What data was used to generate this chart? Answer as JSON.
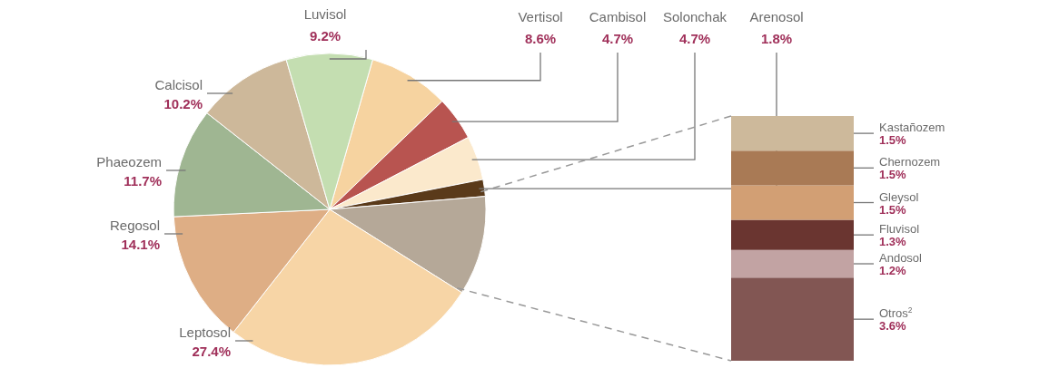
{
  "chart_data": [
    {
      "type": "pie",
      "categories": [
        "Vertisol",
        "Cambisol",
        "Solonchak",
        "Arenosol",
        null,
        "Leptosol",
        "Regosol",
        "Phaeozem",
        "Calcisol",
        "Luvisol"
      ],
      "values": [
        8.6,
        4.7,
        4.7,
        1.8,
        10.6,
        27.4,
        14.1,
        11.7,
        10.2,
        9.2
      ],
      "colors": [
        "#f6d3a0",
        "#b85450",
        "#fbe9cc",
        "#5a3a1a",
        "#b5a898",
        "#f7d5a6",
        "#deae85",
        "#9fb692",
        "#cdb89a",
        "#c4deb1"
      ],
      "value_labels": [
        "8.6%",
        "4.7%",
        "4.7%",
        "1.8%",
        null,
        "27.4%",
        "14.1%",
        "11.7%",
        "10.2%",
        "9.2%"
      ]
    },
    {
      "type": "bar",
      "stacked": true,
      "categories": [
        null
      ],
      "series": [
        {
          "name": "Otros$^{2}$",
          "color": "#825653",
          "values": [
            3.6
          ],
          "value_labels": [
            "3.6%"
          ]
        },
        {
          "name": "Andosol",
          "color": "#c2a3a3",
          "values": [
            1.2
          ],
          "value_labels": [
            "1.2%"
          ]
        },
        {
          "name": "Fluvisol",
          "color": "#6a3530",
          "values": [
            1.3
          ],
          "value_labels": [
            "1.3%"
          ]
        },
        {
          "name": "Gleysol",
          "color": "#d29f74",
          "values": [
            1.5
          ],
          "value_labels": [
            "1.5%"
          ]
        },
        {
          "name": "Chernozem",
          "color": "#a97a55",
          "values": [
            1.5
          ],
          "value_labels": [
            "1.5%"
          ]
        },
        {
          "name": "Kastañozem",
          "color": "#cdb99b",
          "values": [
            1.5
          ],
          "value_labels": [
            "1.5%"
          ]
        }
      ]
    }
  ]
}
